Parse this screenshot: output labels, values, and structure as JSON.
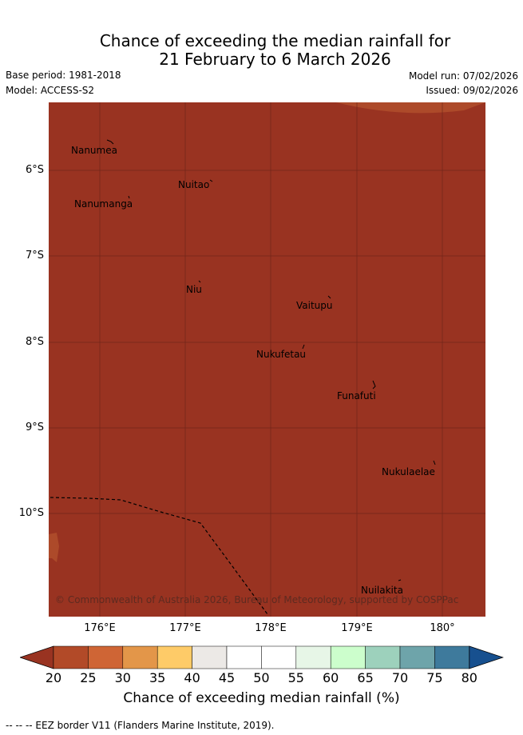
{
  "header": {
    "title_line1": "Chance of exceeding the median rainfall for",
    "title_line2": "21 February to 6 March 2026",
    "base_period": "Base period: 1981-2018",
    "model": "Model: ACCESS-S2",
    "model_run": "Model run: 07/02/2026",
    "issued": "Issued: 09/02/2026"
  },
  "map": {
    "lat_labels": [
      "6°S",
      "7°S",
      "8°S",
      "9°S",
      "10°S"
    ],
    "lon_labels": [
      "176°E",
      "177°E",
      "178°E",
      "179°E",
      "180°"
    ],
    "places": [
      "Nanumea",
      "Nuitao",
      "Nanumanga",
      "Niu",
      "Vaitupu",
      "Nukufetau",
      "Funafuti",
      "Nukulaelae",
      "Nuilakita"
    ],
    "copyright": "© Commonwealth of Australia 2026, Bureau of Meteorology, supported by COSPPac",
    "colors": {
      "main": "#993321",
      "lighter": "#ad4a2a"
    }
  },
  "colorbar": {
    "ticks": [
      "20",
      "25",
      "30",
      "35",
      "40",
      "45",
      "50",
      "55",
      "60",
      "65",
      "70",
      "75",
      "80"
    ],
    "colors": [
      "#993321",
      "#b24a28",
      "#cf6535",
      "#e39649",
      "#fecb68",
      "#ece9e6",
      "#ffffff",
      "#ffffff",
      "#e7f6e7",
      "#ccfecc",
      "#9dd1bc",
      "#6ea4aa",
      "#3e7a9c",
      "#17508f"
    ],
    "title": "Chance of exceeding median rainfall (%)"
  },
  "footer": {
    "legend": "-- -- -- EEZ border V11 (Flanders Marine Institute, 2019)."
  }
}
